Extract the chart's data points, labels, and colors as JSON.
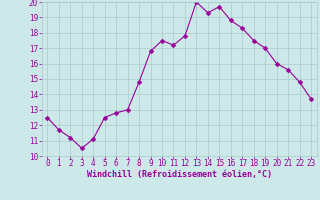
{
  "x": [
    0,
    1,
    2,
    3,
    4,
    5,
    6,
    7,
    8,
    9,
    10,
    11,
    12,
    13,
    14,
    15,
    16,
    17,
    18,
    19,
    20,
    21,
    22,
    23
  ],
  "y": [
    12.5,
    11.7,
    11.2,
    10.5,
    11.1,
    12.5,
    12.8,
    13.0,
    14.8,
    16.8,
    17.5,
    17.2,
    17.8,
    20.0,
    19.3,
    19.7,
    18.8,
    18.3,
    17.5,
    17.0,
    16.0,
    15.6,
    14.8,
    13.7
  ],
  "line_color": "#990099",
  "marker": "D",
  "marker_size": 2.5,
  "bg_color": "#cce8e8",
  "grid_color": "#aacccc",
  "xlabel": "Windchill (Refroidissement éolien,°C)",
  "xlabel_color": "#990099",
  "tick_color": "#990099",
  "ylim": [
    10,
    20
  ],
  "xlim": [
    -0.5,
    23.5
  ],
  "yticks": [
    10,
    11,
    12,
    13,
    14,
    15,
    16,
    17,
    18,
    19,
    20
  ],
  "xticks": [
    0,
    1,
    2,
    3,
    4,
    5,
    6,
    7,
    8,
    9,
    10,
    11,
    12,
    13,
    14,
    15,
    16,
    17,
    18,
    19,
    20,
    21,
    22,
    23
  ],
  "tick_fontsize": 5.5,
  "xlabel_fontsize": 6.0
}
